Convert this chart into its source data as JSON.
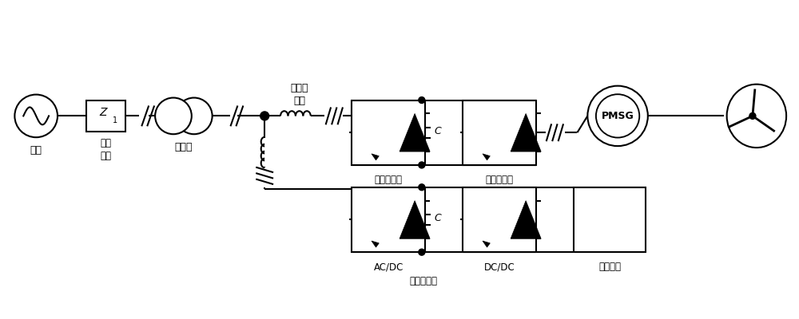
{
  "bg_color": "#ffffff",
  "lc": "#000000",
  "lw": 1.5,
  "labels": {
    "grid": "电网",
    "line_impedance": "线路\n阻抗",
    "transformer": "变压器",
    "line_reactor": "进线电\n抗器",
    "grid_converter": "网侧变换器",
    "machine_converter": "机侧变换器",
    "acdc": "AC/DC",
    "dcdc": "DC/DC",
    "supercap": "超级电容",
    "storage": "储能变流器",
    "pmsg": "PMSG",
    "z1": "Z",
    "z1_sub": "1",
    "cap_label": "C"
  }
}
